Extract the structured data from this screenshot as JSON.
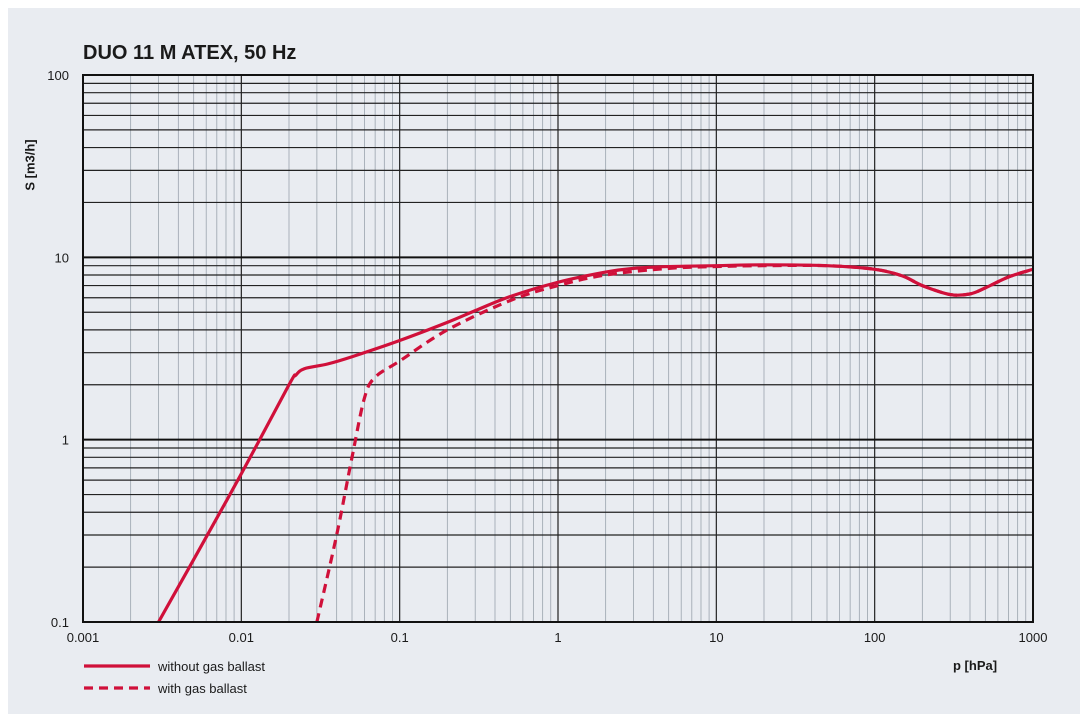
{
  "chart_data": {
    "type": "line",
    "title": "DUO 11 M ATEX, 50 Hz",
    "xlabel": "p [hPa]",
    "ylabel": "S [m3/h]",
    "x_scale": "log",
    "y_scale": "log",
    "xlim": [
      0.001,
      1000
    ],
    "ylim": [
      0.1,
      100
    ],
    "x_ticks": [
      "0.001",
      "0.01",
      "0.1",
      "1",
      "10",
      "100",
      "1000"
    ],
    "y_ticks": [
      "0.1",
      "1",
      "10",
      "100"
    ],
    "grid": true,
    "legend_position": "bottom-left",
    "series": [
      {
        "name": "without gas ballast",
        "style": "solid",
        "color": "#d0103a",
        "points": [
          [
            0.003,
            0.1
          ],
          [
            0.005,
            0.22
          ],
          [
            0.01,
            0.65
          ],
          [
            0.02,
            2.0
          ],
          [
            0.022,
            2.25
          ],
          [
            0.025,
            2.45
          ],
          [
            0.035,
            2.6
          ],
          [
            0.05,
            2.85
          ],
          [
            0.1,
            3.5
          ],
          [
            0.2,
            4.4
          ],
          [
            0.3,
            5.1
          ],
          [
            0.5,
            6.1
          ],
          [
            1,
            7.3
          ],
          [
            2,
            8.3
          ],
          [
            3,
            8.7
          ],
          [
            5,
            8.9
          ],
          [
            10,
            9.0
          ],
          [
            20,
            9.1
          ],
          [
            50,
            9.0
          ],
          [
            100,
            8.6
          ],
          [
            150,
            7.9
          ],
          [
            200,
            7.0
          ],
          [
            300,
            6.25
          ],
          [
            400,
            6.3
          ],
          [
            500,
            6.8
          ],
          [
            700,
            7.8
          ],
          [
            1000,
            8.6
          ]
        ]
      },
      {
        "name": "with gas ballast",
        "style": "dashed",
        "color": "#d0103a",
        "points": [
          [
            0.03,
            0.1
          ],
          [
            0.04,
            0.3
          ],
          [
            0.05,
            0.8
          ],
          [
            0.06,
            1.7
          ],
          [
            0.07,
            2.2
          ],
          [
            0.1,
            2.7
          ],
          [
            0.2,
            4.0
          ],
          [
            0.5,
            5.8
          ],
          [
            1,
            7.0
          ],
          [
            2,
            8.0
          ],
          [
            5,
            8.7
          ],
          [
            10,
            8.9
          ],
          [
            20,
            9.0
          ],
          [
            50,
            9.0
          ],
          [
            100,
            8.6
          ],
          [
            150,
            7.9
          ],
          [
            200,
            7.0
          ],
          [
            300,
            6.25
          ],
          [
            400,
            6.3
          ],
          [
            500,
            6.8
          ],
          [
            700,
            7.8
          ],
          [
            1000,
            8.6
          ]
        ]
      }
    ]
  }
}
